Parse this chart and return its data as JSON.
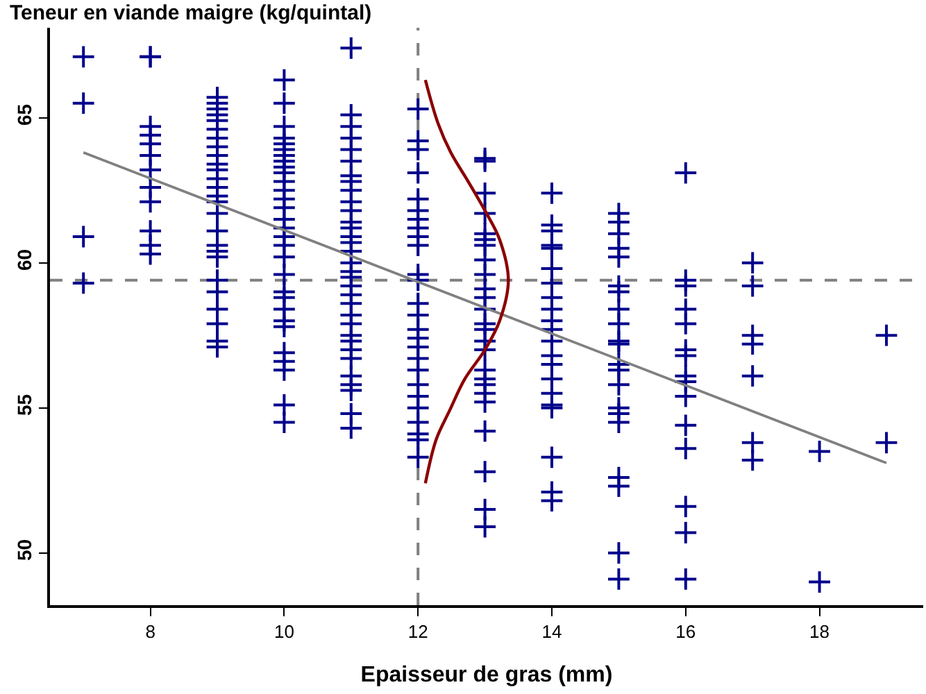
{
  "chart_data": {
    "type": "scatter",
    "ylabel": "Teneur en viande maigre (kg/quintal)",
    "xlabel": "Epaisseur de gras (mm)",
    "xlim": [
      6.5,
      19.55
    ],
    "ylim": [
      48.2,
      68.1
    ],
    "xticks": [
      8,
      10,
      12,
      14,
      16,
      18
    ],
    "yticks": [
      50,
      55,
      60,
      65
    ],
    "series": [
      {
        "color": "#00008b",
        "marker": "cross",
        "x": [
          7,
          7,
          7,
          7,
          8,
          8,
          8,
          8,
          8,
          8,
          8,
          8,
          8,
          8,
          8,
          8,
          9,
          9,
          9,
          9,
          9,
          9,
          9,
          9,
          9,
          9,
          9,
          9,
          9,
          9,
          9,
          9,
          9,
          9,
          9,
          9,
          9,
          9,
          9,
          9,
          9,
          9,
          10,
          10,
          10,
          10,
          10,
          10,
          10,
          10,
          10,
          10,
          10,
          10,
          10,
          10,
          10,
          10,
          10,
          10,
          10,
          10,
          10,
          10,
          10,
          10,
          10,
          10,
          10,
          10,
          10,
          10,
          11,
          11,
          11,
          11,
          11,
          11,
          11,
          11,
          11,
          11,
          11,
          11,
          11,
          11,
          11,
          11,
          11,
          11,
          11,
          11,
          11,
          11,
          11,
          11,
          11,
          11,
          11,
          11,
          11,
          11,
          11,
          11,
          11,
          12,
          12,
          12,
          12,
          12,
          12,
          12,
          12,
          12,
          12,
          12,
          12,
          12,
          12,
          12,
          12,
          12,
          12,
          12,
          12,
          12,
          12,
          12,
          12,
          12,
          12,
          13,
          13,
          13,
          13,
          13,
          13,
          13,
          13,
          13,
          13,
          13,
          13,
          13,
          13,
          13,
          13,
          13,
          13,
          13,
          13,
          13,
          13,
          13,
          13,
          13,
          14,
          14,
          14,
          14,
          14,
          14,
          14,
          14,
          14,
          14,
          14,
          14,
          14,
          14,
          14,
          14,
          14,
          14,
          14,
          14,
          14,
          15,
          15,
          15,
          15,
          15,
          15,
          15,
          15,
          15,
          15,
          15,
          15,
          15,
          15,
          15,
          15,
          15,
          15,
          15,
          15,
          15,
          16,
          16,
          16,
          16,
          16,
          16,
          16,
          16,
          16,
          16,
          16,
          16,
          16,
          16,
          16,
          17,
          17,
          17,
          17,
          17,
          17,
          17,
          18,
          18,
          19,
          19
        ],
        "values": [
          67.1,
          65.5,
          60.9,
          59.3,
          67.1,
          67.1,
          64.7,
          64.4,
          64.1,
          63.7,
          63.2,
          62.6,
          62.1,
          61.1,
          60.6,
          60.3,
          65.7,
          65.5,
          65.3,
          65.1,
          64.9,
          64.6,
          64.3,
          64.0,
          63.7,
          63.4,
          63.2,
          62.9,
          62.6,
          62.3,
          62.1,
          61.7,
          61.1,
          60.6,
          60.4,
          60.2,
          59.4,
          59.0,
          58.4,
          57.9,
          57.3,
          57.1,
          66.3,
          65.5,
          64.7,
          64.3,
          64.1,
          63.9,
          63.7,
          63.5,
          63.3,
          63.1,
          62.8,
          62.5,
          62.2,
          61.9,
          61.5,
          61.2,
          60.9,
          60.6,
          60.2,
          59.6,
          59.0,
          58.8,
          58.4,
          58.0,
          57.8,
          56.9,
          56.6,
          56.3,
          55.1,
          54.5,
          67.4,
          65.1,
          64.7,
          64.3,
          63.9,
          63.5,
          63.0,
          62.8,
          62.5,
          62.1,
          61.8,
          61.4,
          61.2,
          60.9,
          60.7,
          60.4,
          60.0,
          59.7,
          59.5,
          59.2,
          58.9,
          58.6,
          58.2,
          57.9,
          57.5,
          57.3,
          57.0,
          56.7,
          56.1,
          55.8,
          55.6,
          54.8,
          54.3,
          65.3,
          64.2,
          63.9,
          63.1,
          62.2,
          61.8,
          61.5,
          61.2,
          60.9,
          60.6,
          59.6,
          59.4,
          58.6,
          58.2,
          57.7,
          57.4,
          57.1,
          56.7,
          56.3,
          55.8,
          55.4,
          55.0,
          54.5,
          54.1,
          53.9,
          53.3,
          63.6,
          63.5,
          62.4,
          61.7,
          61.0,
          60.8,
          60.6,
          60.1,
          59.6,
          59.1,
          58.8,
          58.4,
          57.9,
          57.7,
          57.3,
          57.0,
          56.3,
          56.0,
          55.8,
          55.5,
          55.2,
          54.2,
          52.8,
          51.5,
          50.9,
          62.4,
          61.3,
          61.1,
          60.6,
          60.5,
          59.8,
          59.3,
          58.8,
          58.4,
          58.0,
          57.7,
          57.3,
          56.8,
          56.5,
          56.0,
          55.5,
          55.1,
          55.0,
          53.3,
          52.1,
          51.8,
          61.7,
          61.4,
          61.0,
          60.5,
          60.2,
          59.2,
          59.0,
          58.4,
          57.9,
          57.3,
          57.2,
          56.5,
          56.3,
          55.8,
          55.0,
          54.8,
          54.5,
          52.6,
          52.3,
          50.0,
          49.1,
          63.1,
          59.4,
          59.2,
          58.4,
          57.9,
          57.0,
          56.8,
          56.1,
          55.9,
          55.4,
          54.4,
          53.6,
          51.6,
          50.7,
          49.1,
          60.0,
          59.2,
          57.5,
          57.2,
          56.1,
          53.8,
          53.2,
          53.5,
          49.0,
          57.5,
          53.8
        ]
      },
      {
        "type": "line",
        "color": "#808080",
        "line_style": "solid",
        "marker": "none",
        "x": [
          7,
          19
        ],
        "values": [
          63.8,
          53.1
        ]
      },
      {
        "type": "line",
        "color": "#8b0000",
        "line_style": "solid",
        "marker": "none",
        "x": [
          12.11,
          12.3,
          12.49,
          12.75,
          13.0,
          13.22,
          13.35,
          13.22,
          13.0,
          12.7,
          12.47,
          12.27,
          12.11
        ],
        "values": [
          66.3,
          64.8,
          63.8,
          62.8,
          61.8,
          60.8,
          59.4,
          58.0,
          57.0,
          56.0,
          54.9,
          53.9,
          52.4
        ]
      }
    ],
    "ref_lines": [
      {
        "axis": "y",
        "value": 59.4,
        "color": "#808080",
        "line_style": "dashed"
      },
      {
        "axis": "x",
        "value": 12,
        "color": "#808080",
        "line_style": "dashed"
      }
    ]
  }
}
